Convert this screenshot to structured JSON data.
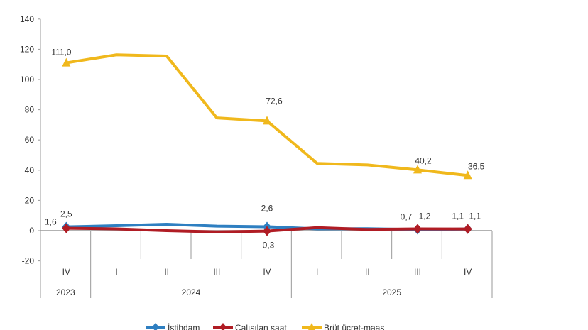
{
  "chart_data": {
    "type": "line",
    "ylim": [
      -20,
      140
    ],
    "yticks": [
      -20,
      0,
      20,
      40,
      60,
      80,
      100,
      120,
      140
    ],
    "grid": false,
    "legend_position": "bottom",
    "categories": [
      "IV",
      "I",
      "II",
      "III",
      "IV",
      "I",
      "II",
      "III",
      "IV"
    ],
    "year_groups": [
      {
        "label": "2023",
        "span": 1
      },
      {
        "label": "2024",
        "span": 4
      },
      {
        "label": "2025",
        "span": 4
      }
    ],
    "series": [
      {
        "name": "İstihdam",
        "color": "#2e7fc1",
        "marker": "diamond",
        "values": [
          2.5,
          3.3,
          4.2,
          3.0,
          2.6,
          1.2,
          1.3,
          0.7,
          1.1
        ],
        "labels": {
          "0": "2,5",
          "4": "2,6",
          "7": "0,7",
          "8": "1,1"
        }
      },
      {
        "name": "Çalışılan saat",
        "color": "#b01c24",
        "marker": "diamond",
        "values": [
          1.6,
          1.2,
          0.0,
          -0.8,
          -0.3,
          2.0,
          0.8,
          1.2,
          1.1
        ],
        "labels": {
          "0": "1,6",
          "4": "-0,3",
          "7": "1,2",
          "8": "1,1"
        }
      },
      {
        "name": "Brüt ücret-maaş",
        "color": "#f0b81c",
        "marker": "triangle",
        "values": [
          111.0,
          116.3,
          115.5,
          74.6,
          72.6,
          44.5,
          43.5,
          40.2,
          36.5
        ],
        "labels": {
          "0": "111,0",
          "4": "72,6",
          "7": "40,2",
          "8": "36,5"
        }
      }
    ]
  }
}
